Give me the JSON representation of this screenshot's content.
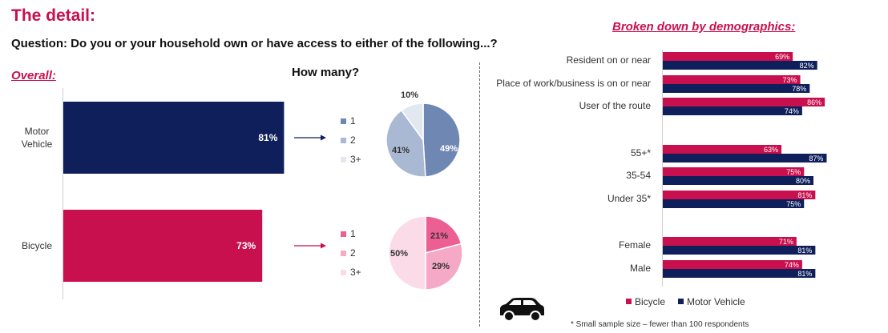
{
  "header": {
    "title": "The detail:",
    "question": "Question: Do you or your household own or have access to either of the following...?",
    "overall_label": "Overall:",
    "how_many_label": "How many?",
    "breakdown_label": "Broken down by demographics:",
    "footnote": "* Small sample size – fewer than 100 respondents"
  },
  "colors": {
    "motor": "#0e1f5b",
    "bicycle": "#c8104e",
    "accent": "#c8104e"
  },
  "icons": {
    "car": "car-icon"
  },
  "chart_data": [
    {
      "type": "bar",
      "orientation": "horizontal",
      "categories": [
        "Motor\nVehicle",
        "Bicycle"
      ],
      "values": [
        81,
        73
      ],
      "labels": [
        "81%",
        "73%"
      ],
      "colors": [
        "#0e1f5b",
        "#c8104e"
      ],
      "xlim": [
        0,
        100
      ]
    },
    {
      "type": "pie",
      "legend": [
        "1",
        "2",
        "3+"
      ],
      "values": [
        49,
        41,
        10
      ],
      "labels": [
        "49%",
        "41%",
        "10%"
      ],
      "colors": [
        "#6f88b3",
        "#a9b9d3",
        "#e2e8f0"
      ]
    },
    {
      "type": "pie",
      "legend": [
        "1",
        "2",
        "3+"
      ],
      "values": [
        21,
        29,
        50
      ],
      "labels": [
        "21%",
        "29%",
        "50%"
      ],
      "colors": [
        "#ec5f93",
        "#f5a9c6",
        "#fbdbe7"
      ]
    },
    {
      "type": "bar",
      "orientation": "horizontal",
      "categories": [
        "Resident on or near",
        "Place of work/business is on or near",
        "User of the route",
        "55+*",
        "35-54",
        "Under 35*",
        "Female",
        "Male"
      ],
      "series": [
        {
          "name": "Bicycle",
          "values": [
            69,
            73,
            86,
            63,
            75,
            81,
            71,
            74
          ],
          "labels": [
            "69%",
            "73%",
            "86%",
            "63%",
            "75%",
            "81%",
            "71%",
            "74%"
          ]
        },
        {
          "name": "Motor Vehicle",
          "values": [
            82,
            78,
            74,
            87,
            80,
            75,
            81,
            81
          ],
          "labels": [
            "82%",
            "78%",
            "74%",
            "87%",
            "80%",
            "75%",
            "81%",
            "81%"
          ]
        }
      ],
      "xlim": [
        0,
        100
      ],
      "legend_position": "bottom"
    }
  ]
}
